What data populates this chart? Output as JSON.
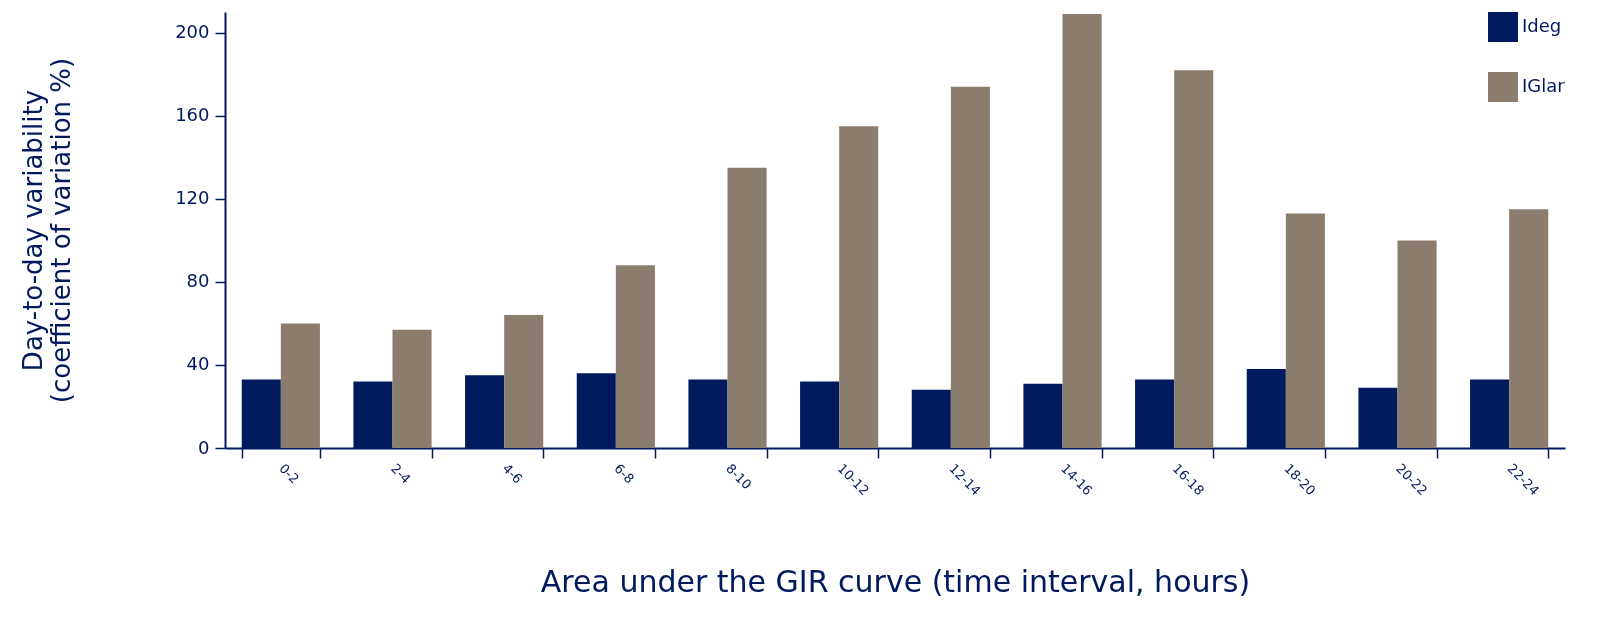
{
  "chart_data": {
    "type": "bar",
    "xlabel": "Area under the GIR curve (time interval, hours)",
    "ylabel": "Day-to-day variability\n(coefficient of variation %)",
    "categories": [
      "0-2",
      "2-4",
      "4-6",
      "6-8",
      "8-10",
      "10-12",
      "12-14",
      "14-16",
      "16-18",
      "18-20",
      "20-22",
      "22-24"
    ],
    "series": [
      {
        "name": "Ideg",
        "color": "#001a5e",
        "values": [
          33,
          32,
          35,
          36,
          33,
          32,
          28,
          31,
          33,
          38,
          29,
          33
        ]
      },
      {
        "name": "IGlar",
        "color": "#8a7d6e",
        "values": [
          60,
          57,
          64,
          88,
          135,
          155,
          174,
          209,
          182,
          113,
          100,
          115
        ]
      }
    ],
    "ylim": [
      0,
      210
    ],
    "yticks": [
      0,
      40,
      80,
      120,
      160,
      200
    ],
    "grid": false,
    "legend": "top right"
  }
}
